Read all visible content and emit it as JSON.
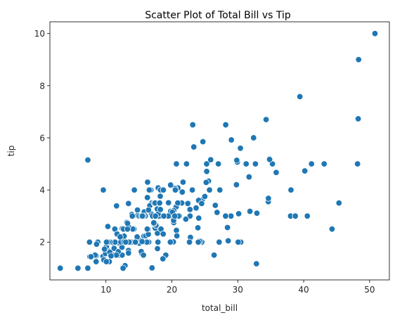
{
  "chart_data": {
    "type": "scatter",
    "title": "Scatter Plot of Total Bill vs Tip",
    "xlabel": "total_bill",
    "ylabel": "tip",
    "xlim": [
      1.5,
      53.0
    ],
    "ylim": [
      0.55,
      10.45
    ],
    "xticks": [
      10,
      20,
      30,
      40,
      50
    ],
    "yticks": [
      2,
      4,
      6,
      8,
      10
    ],
    "grid": false,
    "marker_color": "#1f77b4",
    "marker_edge_color": "#ffffff",
    "points": [
      [
        16.99,
        1.01
      ],
      [
        10.34,
        1.66
      ],
      [
        21.01,
        3.5
      ],
      [
        23.68,
        3.31
      ],
      [
        24.59,
        3.61
      ],
      [
        25.29,
        4.71
      ],
      [
        8.77,
        2.0
      ],
      [
        26.88,
        3.12
      ],
      [
        15.04,
        1.96
      ],
      [
        14.78,
        3.23
      ],
      [
        10.27,
        1.71
      ],
      [
        35.26,
        5.0
      ],
      [
        15.42,
        1.57
      ],
      [
        18.43,
        3.0
      ],
      [
        14.83,
        3.02
      ],
      [
        21.58,
        3.92
      ],
      [
        10.33,
        1.67
      ],
      [
        16.29,
        3.71
      ],
      [
        16.97,
        3.5
      ],
      [
        20.65,
        3.35
      ],
      [
        17.92,
        4.08
      ],
      [
        20.29,
        2.75
      ],
      [
        15.77,
        2.23
      ],
      [
        39.42,
        7.58
      ],
      [
        19.82,
        3.18
      ],
      [
        17.81,
        2.34
      ],
      [
        13.37,
        2.0
      ],
      [
        12.69,
        2.0
      ],
      [
        21.7,
        4.3
      ],
      [
        19.65,
        3.0
      ],
      [
        9.55,
        1.45
      ],
      [
        18.35,
        2.5
      ],
      [
        15.06,
        3.0
      ],
      [
        20.69,
        2.45
      ],
      [
        17.78,
        3.27
      ],
      [
        24.06,
        3.6
      ],
      [
        16.31,
        2.0
      ],
      [
        16.93,
        3.07
      ],
      [
        18.69,
        2.31
      ],
      [
        31.27,
        5.0
      ],
      [
        16.04,
        2.24
      ],
      [
        17.46,
        2.54
      ],
      [
        13.94,
        3.06
      ],
      [
        9.68,
        1.32
      ],
      [
        30.4,
        5.6
      ],
      [
        18.29,
        3.0
      ],
      [
        22.23,
        5.0
      ],
      [
        32.4,
        6.0
      ],
      [
        28.55,
        2.05
      ],
      [
        18.04,
        3.0
      ],
      [
        12.54,
        2.5
      ],
      [
        10.29,
        2.6
      ],
      [
        34.81,
        5.2
      ],
      [
        9.94,
        1.56
      ],
      [
        25.56,
        4.34
      ],
      [
        19.49,
        3.51
      ],
      [
        38.01,
        3.0
      ],
      [
        26.41,
        1.5
      ],
      [
        11.24,
        1.76
      ],
      [
        48.27,
        6.73
      ],
      [
        20.29,
        3.21
      ],
      [
        13.81,
        2.0
      ],
      [
        11.02,
        1.98
      ],
      [
        18.29,
        3.76
      ],
      [
        17.59,
        2.64
      ],
      [
        20.08,
        3.15
      ],
      [
        16.45,
        2.47
      ],
      [
        3.07,
        1.0
      ],
      [
        20.23,
        2.01
      ],
      [
        15.01,
        2.09
      ],
      [
        12.02,
        1.97
      ],
      [
        17.07,
        3.0
      ],
      [
        26.86,
        3.14
      ],
      [
        25.28,
        5.0
      ],
      [
        14.73,
        2.2
      ],
      [
        10.51,
        1.25
      ],
      [
        17.92,
        3.08
      ],
      [
        27.2,
        4.0
      ],
      [
        22.76,
        3.0
      ],
      [
        17.29,
        2.71
      ],
      [
        19.44,
        3.0
      ],
      [
        16.66,
        3.4
      ],
      [
        10.07,
        1.83
      ],
      [
        32.68,
        5.0
      ],
      [
        15.98,
        2.03
      ],
      [
        34.83,
        5.17
      ],
      [
        13.03,
        2.0
      ],
      [
        18.28,
        4.0
      ],
      [
        24.71,
        5.85
      ],
      [
        21.16,
        3.0
      ],
      [
        28.97,
        3.0
      ],
      [
        22.49,
        3.5
      ],
      [
        5.75,
        1.0
      ],
      [
        16.32,
        4.3
      ],
      [
        22.75,
        3.25
      ],
      [
        40.17,
        4.73
      ],
      [
        27.28,
        4.0
      ],
      [
        12.03,
        1.5
      ],
      [
        21.01,
        3.0
      ],
      [
        12.46,
        1.5
      ],
      [
        11.35,
        2.5
      ],
      [
        15.38,
        3.0
      ],
      [
        44.3,
        2.5
      ],
      [
        22.42,
        3.48
      ],
      [
        20.92,
        4.08
      ],
      [
        15.36,
        1.64
      ],
      [
        20.49,
        4.06
      ],
      [
        25.21,
        4.29
      ],
      [
        18.24,
        3.76
      ],
      [
        14.31,
        4.0
      ],
      [
        14.0,
        3.0
      ],
      [
        7.25,
        1.0
      ],
      [
        38.07,
        4.0
      ],
      [
        23.95,
        2.55
      ],
      [
        25.71,
        4.0
      ],
      [
        17.31,
        3.5
      ],
      [
        29.93,
        5.07
      ],
      [
        10.65,
        1.5
      ],
      [
        12.43,
        1.8
      ],
      [
        24.08,
        2.92
      ],
      [
        11.69,
        2.31
      ],
      [
        13.42,
        1.68
      ],
      [
        14.26,
        2.5
      ],
      [
        15.95,
        2.0
      ],
      [
        12.48,
        2.52
      ],
      [
        29.8,
        4.2
      ],
      [
        8.52,
        1.48
      ],
      [
        14.52,
        2.0
      ],
      [
        11.38,
        2.0
      ],
      [
        22.82,
        2.18
      ],
      [
        19.08,
        1.5
      ],
      [
        20.27,
        2.83
      ],
      [
        11.17,
        1.5
      ],
      [
        12.26,
        2.0
      ],
      [
        18.26,
        3.25
      ],
      [
        8.51,
        1.25
      ],
      [
        10.33,
        2.0
      ],
      [
        14.15,
        2.0
      ],
      [
        16.0,
        2.0
      ],
      [
        13.16,
        2.75
      ],
      [
        17.47,
        3.5
      ],
      [
        34.3,
        6.7
      ],
      [
        41.19,
        5.0
      ],
      [
        27.05,
        5.0
      ],
      [
        16.43,
        2.3
      ],
      [
        8.35,
        1.5
      ],
      [
        18.64,
        1.36
      ],
      [
        11.87,
        1.63
      ],
      [
        9.78,
        1.73
      ],
      [
        7.51,
        2.0
      ],
      [
        14.07,
        2.5
      ],
      [
        13.13,
        2.0
      ],
      [
        17.26,
        2.74
      ],
      [
        24.55,
        2.0
      ],
      [
        19.77,
        2.0
      ],
      [
        29.85,
        5.14
      ],
      [
        48.17,
        5.0
      ],
      [
        25.0,
        3.75
      ],
      [
        13.39,
        2.61
      ],
      [
        16.49,
        2.0
      ],
      [
        21.5,
        3.5
      ],
      [
        12.66,
        2.5
      ],
      [
        16.21,
        2.0
      ],
      [
        13.81,
        2.0
      ],
      [
        17.51,
        3.0
      ],
      [
        24.52,
        3.48
      ],
      [
        20.76,
        2.24
      ],
      [
        31.71,
        4.5
      ],
      [
        10.59,
        1.61
      ],
      [
        10.63,
        2.0
      ],
      [
        50.81,
        10.0
      ],
      [
        15.81,
        3.16
      ],
      [
        7.25,
        5.15
      ],
      [
        31.85,
        3.18
      ],
      [
        16.82,
        4.0
      ],
      [
        32.9,
        3.11
      ],
      [
        17.89,
        2.0
      ],
      [
        14.48,
        2.0
      ],
      [
        9.6,
        4.0
      ],
      [
        34.63,
        3.55
      ],
      [
        34.65,
        3.68
      ],
      [
        23.33,
        5.65
      ],
      [
        45.35,
        3.5
      ],
      [
        23.17,
        6.5
      ],
      [
        40.55,
        3.0
      ],
      [
        20.69,
        5.0
      ],
      [
        20.9,
        3.5
      ],
      [
        30.46,
        2.0
      ],
      [
        18.15,
        3.5
      ],
      [
        23.1,
        4.0
      ],
      [
        15.69,
        1.5
      ],
      [
        19.81,
        4.19
      ],
      [
        28.44,
        2.56
      ],
      [
        15.48,
        2.02
      ],
      [
        16.58,
        4.0
      ],
      [
        7.56,
        1.44
      ],
      [
        10.34,
        2.0
      ],
      [
        43.11,
        5.0
      ],
      [
        13.0,
        2.0
      ],
      [
        13.51,
        2.0
      ],
      [
        18.71,
        4.0
      ],
      [
        12.74,
        2.01
      ],
      [
        13.0,
        2.0
      ],
      [
        16.4,
        2.5
      ],
      [
        20.53,
        4.0
      ],
      [
        16.47,
        3.23
      ],
      [
        26.59,
        3.41
      ],
      [
        38.73,
        3.0
      ],
      [
        24.27,
        2.03
      ],
      [
        12.76,
        2.23
      ],
      [
        30.06,
        2.0
      ],
      [
        25.89,
        5.16
      ],
      [
        48.33,
        9.0
      ],
      [
        13.27,
        2.5
      ],
      [
        28.17,
        6.5
      ],
      [
        12.9,
        1.1
      ],
      [
        28.15,
        3.0
      ],
      [
        11.59,
        1.5
      ],
      [
        7.74,
        1.44
      ],
      [
        30.14,
        3.09
      ],
      [
        12.16,
        2.2
      ],
      [
        13.42,
        3.48
      ],
      [
        8.58,
        1.92
      ],
      [
        15.98,
        3.0
      ],
      [
        13.42,
        1.58
      ],
      [
        16.27,
        2.5
      ],
      [
        10.09,
        2.0
      ],
      [
        20.45,
        3.0
      ],
      [
        13.28,
        2.72
      ],
      [
        22.12,
        2.88
      ],
      [
        24.01,
        2.0
      ],
      [
        15.69,
        3.0
      ],
      [
        11.61,
        3.39
      ],
      [
        10.77,
        1.47
      ],
      [
        15.53,
        3.0
      ],
      [
        10.07,
        1.25
      ],
      [
        12.6,
        1.0
      ],
      [
        32.83,
        1.17
      ],
      [
        35.83,
        4.67
      ],
      [
        29.03,
        5.92
      ],
      [
        27.18,
        2.0
      ],
      [
        22.67,
        2.0
      ],
      [
        17.82,
        1.75
      ],
      [
        18.78,
        3.0
      ]
    ]
  }
}
